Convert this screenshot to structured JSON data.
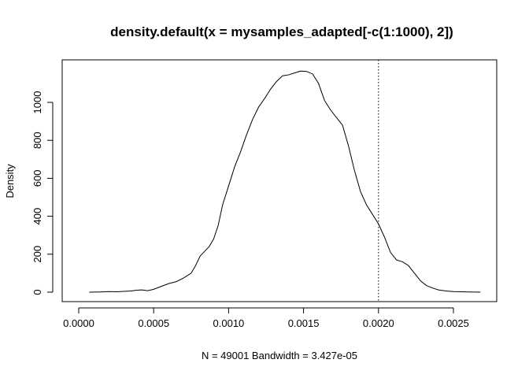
{
  "chart_data": {
    "type": "line",
    "title": "density.default(x = mysamples_adapted[-c(1:1000), 2])",
    "xlabel": "N = 49001   Bandwidth = 3.427e-05",
    "ylabel": "Density",
    "xlim": [
      0.0,
      0.0027
    ],
    "ylim": [
      0,
      1200
    ],
    "x_ticks": [
      0.0,
      0.0005,
      0.001,
      0.0015,
      0.002,
      0.0025
    ],
    "x_tick_labels": [
      "0.0000",
      "0.0005",
      "0.0010",
      "0.0015",
      "0.0020",
      "0.0025"
    ],
    "y_ticks": [
      0,
      200,
      400,
      600,
      800,
      1000
    ],
    "y_tick_labels": [
      "0",
      "200",
      "400",
      "600",
      "800",
      "1000"
    ],
    "grid": false,
    "reference_line": {
      "x": 0.002,
      "style": "dotted"
    },
    "series": [
      {
        "x": [
          7e-05,
          0.00015,
          0.0002,
          0.00025,
          0.0003,
          0.00035,
          0.00038,
          0.00042,
          0.00046,
          0.0005,
          0.00055,
          0.0006,
          0.00065,
          0.0007,
          0.00075,
          0.00078,
          0.00081,
          0.00084,
          0.00087,
          0.0009,
          0.00093,
          0.00096,
          0.001,
          0.00104,
          0.00108,
          0.00112,
          0.00116,
          0.0012,
          0.00124,
          0.00128,
          0.00132,
          0.00136,
          0.0014,
          0.00144,
          0.00148,
          0.00152,
          0.00156,
          0.0016,
          0.00164,
          0.00168,
          0.00172,
          0.00176,
          0.0018,
          0.00184,
          0.00188,
          0.00192,
          0.00196,
          0.002,
          0.00204,
          0.00208,
          0.00212,
          0.00216,
          0.0022,
          0.00224,
          0.00228,
          0.00232,
          0.00236,
          0.0024,
          0.00245,
          0.0025,
          0.0026,
          0.00268
        ],
        "y": [
          0,
          1,
          3,
          2,
          4,
          6,
          10,
          12,
          8,
          15,
          30,
          45,
          55,
          75,
          100,
          140,
          190,
          215,
          240,
          280,
          350,
          460,
          560,
          660,
          740,
          830,
          910,
          975,
          1020,
          1070,
          1110,
          1140,
          1145,
          1155,
          1165,
          1163,
          1150,
          1100,
          1010,
          960,
          920,
          880,
          770,
          640,
          530,
          460,
          410,
          360,
          290,
          210,
          170,
          160,
          140,
          100,
          60,
          35,
          22,
          12,
          6,
          3,
          1,
          0
        ]
      }
    ]
  }
}
